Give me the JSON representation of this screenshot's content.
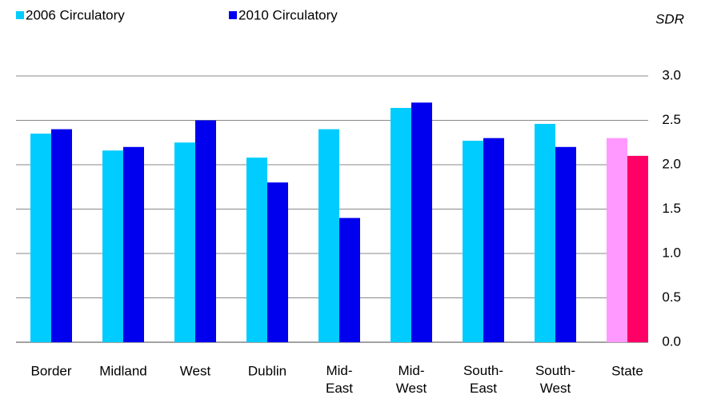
{
  "chart_data": {
    "type": "bar",
    "y_axis_label": "SDR",
    "categories": [
      "Border",
      "Midland",
      "West",
      "Dublin",
      "Mid-East",
      "Mid-West",
      "South-East",
      "South-West",
      "State"
    ],
    "series": [
      {
        "name": "2006 Circulatory",
        "color": "#00ccff",
        "colors": [
          "#00ccff",
          "#00ccff",
          "#00ccff",
          "#00ccff",
          "#00ccff",
          "#00ccff",
          "#00ccff",
          "#00ccff",
          "#ff99ff"
        ],
        "values": [
          2.35,
          2.16,
          2.25,
          2.08,
          2.4,
          2.64,
          2.27,
          2.46,
          2.3
        ]
      },
      {
        "name": "2010 Circulatory",
        "color": "#0000ee",
        "colors": [
          "#0000ee",
          "#0000ee",
          "#0000ee",
          "#0000ee",
          "#0000ee",
          "#0000ee",
          "#0000ee",
          "#0000ee",
          "#ff0066"
        ],
        "values": [
          2.4,
          2.2,
          2.5,
          1.8,
          1.4,
          2.7,
          2.3,
          2.2,
          2.1
        ]
      }
    ],
    "ylim": [
      0,
      3
    ],
    "yticks": [
      {
        "value": 0,
        "label": "0.0"
      },
      {
        "value": 0.5,
        "label": "0.5"
      },
      {
        "value": 1,
        "label": "1.0"
      },
      {
        "value": 1.5,
        "label": "1.5"
      },
      {
        "value": 2,
        "label": "2.0"
      },
      {
        "value": 2.5,
        "label": "2.5"
      },
      {
        "value": 3,
        "label": "3.0"
      }
    ],
    "grid": true,
    "legend": "top-left"
  }
}
